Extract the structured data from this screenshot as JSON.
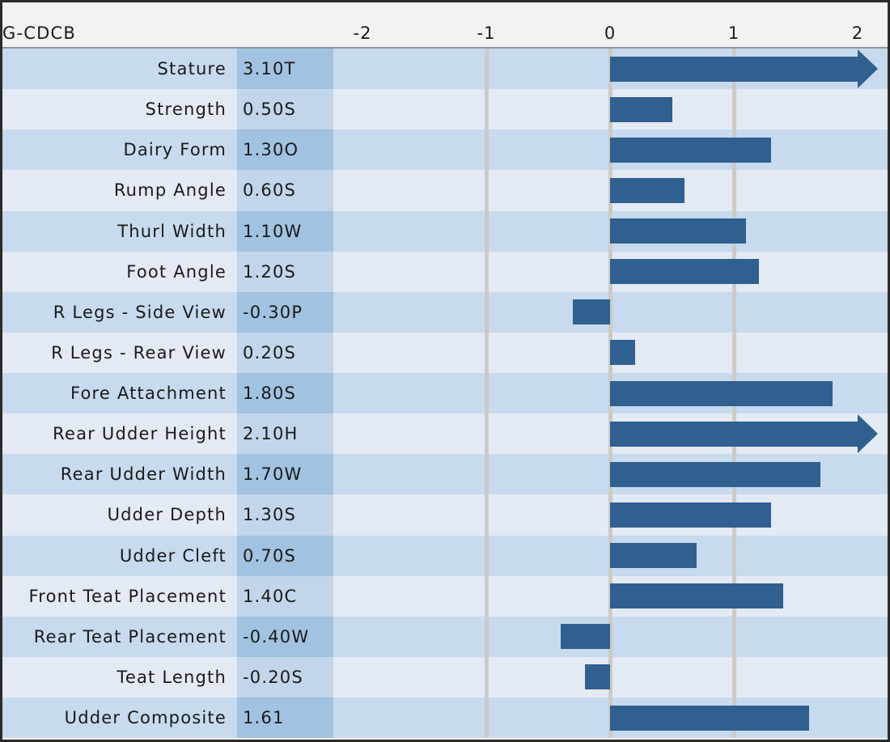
{
  "chart_data": {
    "type": "bar",
    "orientation": "horizontal",
    "title": "",
    "value_column_label": "G-CDCB",
    "axis": {
      "min": -2,
      "max": 2,
      "tick_labels": [
        "-2",
        "-1",
        "0",
        "1",
        "2"
      ],
      "tick_values": [
        -2,
        -1,
        0,
        1,
        2
      ],
      "gridline_values": [
        -1,
        0,
        1
      ],
      "grid": true
    },
    "overflow_cap": 2,
    "rows": [
      {
        "trait": "Stature",
        "value_label": "3.10T",
        "value": 3.1,
        "overflow_arrow": true
      },
      {
        "trait": "Strength",
        "value_label": "0.50S",
        "value": 0.5,
        "overflow_arrow": false
      },
      {
        "trait": "Dairy Form",
        "value_label": "1.30O",
        "value": 1.3,
        "overflow_arrow": false
      },
      {
        "trait": "Rump Angle",
        "value_label": "0.60S",
        "value": 0.6,
        "overflow_arrow": false
      },
      {
        "trait": "Thurl Width",
        "value_label": "1.10W",
        "value": 1.1,
        "overflow_arrow": false
      },
      {
        "trait": "Foot Angle",
        "value_label": "1.20S",
        "value": 1.2,
        "overflow_arrow": false
      },
      {
        "trait": "R Legs - Side View",
        "value_label": "-0.30P",
        "value": -0.3,
        "overflow_arrow": false
      },
      {
        "trait": "R Legs - Rear View",
        "value_label": "0.20S",
        "value": 0.2,
        "overflow_arrow": false
      },
      {
        "trait": "Fore Attachment",
        "value_label": "1.80S",
        "value": 1.8,
        "overflow_arrow": false
      },
      {
        "trait": "Rear Udder Height",
        "value_label": "2.10H",
        "value": 2.1,
        "overflow_arrow": true
      },
      {
        "trait": "Rear Udder Width",
        "value_label": "1.70W",
        "value": 1.7,
        "overflow_arrow": false
      },
      {
        "trait": "Udder Depth",
        "value_label": "1.30S",
        "value": 1.3,
        "overflow_arrow": false
      },
      {
        "trait": "Udder Cleft",
        "value_label": "0.70S",
        "value": 0.7,
        "overflow_arrow": false
      },
      {
        "trait": "Front Teat Placement",
        "value_label": "1.40C",
        "value": 1.4,
        "overflow_arrow": false
      },
      {
        "trait": "Rear Teat Placement",
        "value_label": "-0.40W",
        "value": -0.4,
        "overflow_arrow": false
      },
      {
        "trait": "Teat Length",
        "value_label": "-0.20S",
        "value": -0.2,
        "overflow_arrow": false
      },
      {
        "trait": "Udder Composite",
        "value_label": "1.61",
        "value": 1.61,
        "overflow_arrow": false
      }
    ],
    "legend": null
  },
  "colors": {
    "bar": "#30608F",
    "row_stripe_dark": "#C7DAEE",
    "row_stripe_light": "#E3EAF4",
    "value_column_dark": "#A1C2E0",
    "value_column_light": "#C2D5EA",
    "header_background": "#F2F2F2",
    "gridline": "#CCCBC7",
    "outer_border": "#2B2B2B",
    "text": "#1A1A1A"
  }
}
